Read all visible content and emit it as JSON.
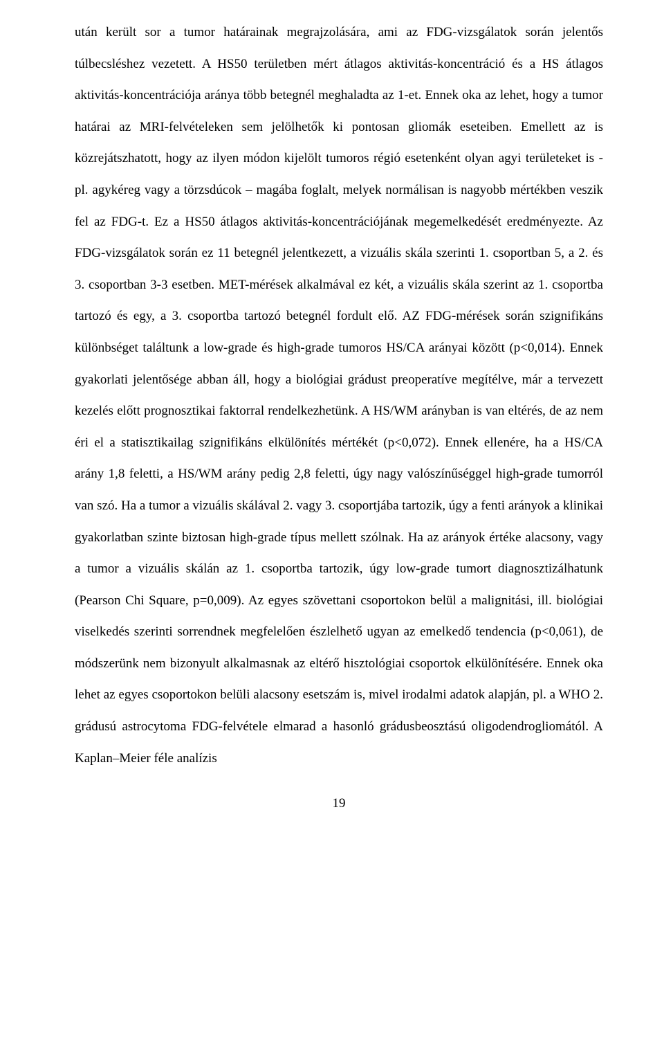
{
  "doc": {
    "font_family": "Times New Roman",
    "font_size_pt": 12,
    "line_height": 2.4,
    "text_color": "#000000",
    "background_color": "#ffffff",
    "body": "után került sor a tumor határainak megrajzolására, ami az FDG-vizsgálatok során jelentős túlbecsléshez vezetett. A HS50 területben mért átlagos aktivitás-koncentráció és a HS átlagos aktivitás-koncentrációja aránya több betegnél meghaladta az 1-et. Ennek oka az lehet, hogy a tumor határai az MRI-felvételeken sem jelölhetők ki pontosan gliomák eseteiben. Emellett az is közrejátszhatott, hogy az ilyen módon kijelölt tumoros régió esetenként olyan agyi területeket is - pl. agykéreg vagy a törzsdúcok – magába foglalt, melyek normálisan is nagyobb mértékben veszik fel az FDG-t. Ez a HS50 átlagos aktivitás-koncentrációjának megemelkedését eredményezte. Az FDG-vizsgálatok során ez 11 betegnél jelentkezett, a vizuális skála szerinti 1. csoportban 5, a 2. és 3. csoportban 3-3 esetben. MET-mérések alkalmával ez két, a vizuális skála szerint az 1. csoportba tartozó és egy, a 3. csoportba tartozó betegnél fordult elő. AZ FDG-mérések során szignifikáns különbséget találtunk a low-grade és high-grade tumoros HS/CA arányai között (p<0,014). Ennek gyakorlati jelentősége abban áll, hogy a biológiai grádust preoperatíve megítélve, már a tervezett kezelés előtt prognosztikai faktorral rendelkezhetünk. A HS/WM arányban is van eltérés, de az nem éri el a statisztikailag szignifikáns elkülönítés mértékét (p<0,072). Ennek ellenére, ha a HS/CA arány 1,8 feletti, a HS/WM arány pedig 2,8 feletti, úgy nagy valószínűséggel high-grade tumorról van szó. Ha a tumor a vizuális skálával 2. vagy 3. csoportjába tartozik, úgy a fenti arányok a klinikai gyakorlatban szinte biztosan high-grade típus mellett szólnak. Ha az arányok értéke alacsony, vagy a tumor a vizuális skálán az 1. csoportba tartozik, úgy low-grade tumort diagnosztizálhatunk (Pearson Chi Square, p=0,009). Az egyes szövettani csoportokon belül a malignitási, ill. biológiai viselkedés szerinti sorrendnek megfelelően észlelhető ugyan  az emelkedő tendencia (p<0,061), de módszerünk nem bizonyult alkalmasnak az eltérő hisztológiai csoportok elkülönítésére. Ennek oka lehet az egyes csoportokon belüli alacsony esetszám is, mivel irodalmi adatok alapján, pl. a WHO 2. grádusú astrocytoma FDG-felvétele elmarad a hasonló grádusbeosztású oligodendrogliomától. A Kaplan–Meier féle analízis",
    "page_number": "19"
  }
}
